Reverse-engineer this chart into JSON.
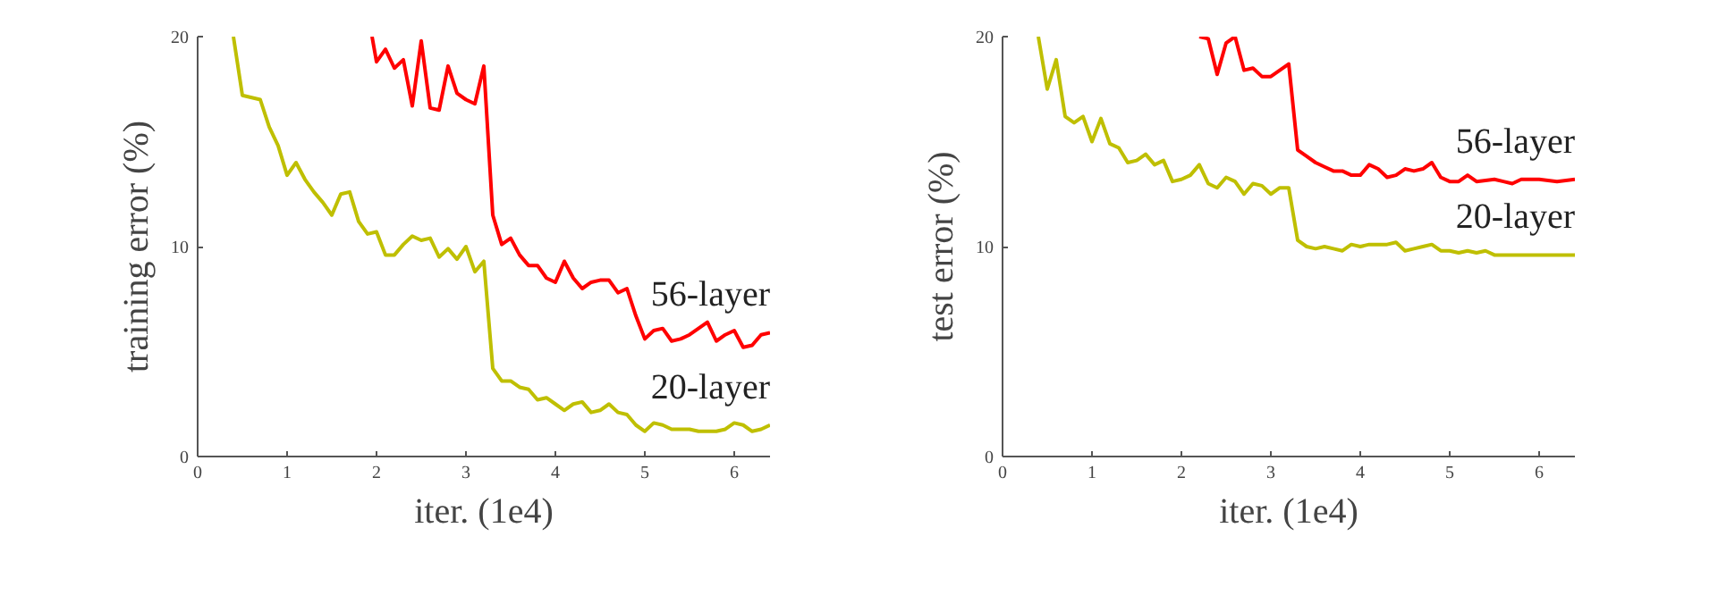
{
  "chart_data": [
    {
      "type": "line",
      "xlabel": "iter. (1e4)",
      "ylabel": "training error (%)",
      "xlim": [
        0,
        6.4
      ],
      "ylim": [
        0,
        20
      ],
      "xticks": [
        0,
        1,
        2,
        3,
        4,
        5,
        6
      ],
      "yticks": [
        0,
        10,
        20
      ],
      "grid": false,
      "line_style": "solid",
      "marker": "none",
      "series": [
        {
          "name": "56-layer",
          "color": "#ff0000",
          "x": [
            1.95,
            2.0,
            2.1,
            2.2,
            2.3,
            2.4,
            2.5,
            2.6,
            2.7,
            2.8,
            2.9,
            3.0,
            3.1,
            3.2,
            3.3,
            3.4,
            3.5,
            3.6,
            3.7,
            3.8,
            3.9,
            4.0,
            4.1,
            4.2,
            4.3,
            4.4,
            4.5,
            4.6,
            4.7,
            4.8,
            4.9,
            5.0,
            5.1,
            5.2,
            5.3,
            5.4,
            5.5,
            5.6,
            5.7,
            5.8,
            5.9,
            6.0,
            6.1,
            6.2,
            6.3,
            6.4
          ],
          "values": [
            20,
            18.8,
            19.4,
            18.5,
            18.9,
            16.7,
            19.8,
            16.6,
            16.5,
            18.6,
            17.3,
            17.0,
            16.8,
            18.6,
            11.5,
            10.1,
            10.4,
            9.6,
            9.1,
            9.1,
            8.5,
            8.3,
            9.3,
            8.5,
            8.0,
            8.3,
            8.4,
            8.4,
            7.8,
            8.0,
            6.7,
            5.6,
            6.0,
            6.1,
            5.5,
            5.6,
            5.8,
            6.1,
            6.4,
            5.5,
            5.8,
            6.0,
            5.2,
            5.3,
            5.8,
            5.9
          ]
        },
        {
          "name": "20-layer",
          "color": "#bfbf00",
          "x": [
            0.4,
            0.5,
            0.7,
            0.8,
            0.9,
            1.0,
            1.1,
            1.2,
            1.3,
            1.4,
            1.5,
            1.6,
            1.7,
            1.8,
            1.9,
            2.0,
            2.1,
            2.2,
            2.3,
            2.4,
            2.5,
            2.6,
            2.7,
            2.8,
            2.9,
            3.0,
            3.1,
            3.2,
            3.3,
            3.4,
            3.5,
            3.6,
            3.7,
            3.8,
            3.9,
            4.0,
            4.1,
            4.2,
            4.3,
            4.4,
            4.5,
            4.6,
            4.7,
            4.8,
            4.9,
            5.0,
            5.1,
            5.2,
            5.3,
            5.5,
            5.6,
            5.8,
            5.9,
            6.0,
            6.1,
            6.2,
            6.3,
            6.4
          ],
          "values": [
            20,
            17.2,
            17.0,
            15.7,
            14.8,
            13.4,
            14.0,
            13.2,
            12.6,
            12.1,
            11.5,
            12.5,
            12.6,
            11.2,
            10.6,
            10.7,
            9.6,
            9.6,
            10.1,
            10.5,
            10.3,
            10.4,
            9.5,
            9.9,
            9.4,
            10.0,
            8.8,
            9.3,
            4.2,
            3.6,
            3.6,
            3.3,
            3.2,
            2.7,
            2.8,
            2.5,
            2.2,
            2.5,
            2.6,
            2.1,
            2.2,
            2.5,
            2.1,
            2.0,
            1.5,
            1.2,
            1.6,
            1.5,
            1.3,
            1.3,
            1.2,
            1.2,
            1.3,
            1.6,
            1.5,
            1.2,
            1.3,
            1.5
          ]
        }
      ]
    },
    {
      "type": "line",
      "xlabel": "iter. (1e4)",
      "ylabel": "test error (%)",
      "xlim": [
        0,
        6.4
      ],
      "ylim": [
        0,
        20
      ],
      "xticks": [
        0,
        1,
        2,
        3,
        4,
        5,
        6
      ],
      "yticks": [
        0,
        10,
        20
      ],
      "grid": false,
      "line_style": "solid",
      "marker": "none",
      "series": [
        {
          "name": "56-layer",
          "color": "#ff0000",
          "x": [
            2.2,
            2.3,
            2.4,
            2.5,
            2.6,
            2.7,
            2.8,
            2.9,
            3.0,
            3.1,
            3.2,
            3.3,
            3.4,
            3.5,
            3.6,
            3.7,
            3.8,
            3.9,
            4.0,
            4.1,
            4.2,
            4.3,
            4.4,
            4.5,
            4.6,
            4.7,
            4.8,
            4.9,
            5.0,
            5.1,
            5.2,
            5.3,
            5.5,
            5.6,
            5.7,
            5.8,
            6.0,
            6.2,
            6.4
          ],
          "values": [
            20,
            19.9,
            18.2,
            19.7,
            20.0,
            18.4,
            18.5,
            18.1,
            18.1,
            18.4,
            18.7,
            14.6,
            14.3,
            14.0,
            13.8,
            13.6,
            13.6,
            13.4,
            13.4,
            13.9,
            13.7,
            13.3,
            13.4,
            13.7,
            13.6,
            13.7,
            14.0,
            13.3,
            13.1,
            13.1,
            13.4,
            13.1,
            13.2,
            13.1,
            13.0,
            13.2,
            13.2,
            13.1,
            13.2
          ]
        },
        {
          "name": "20-layer",
          "color": "#bfbf00",
          "x": [
            0.4,
            0.5,
            0.6,
            0.7,
            0.8,
            0.9,
            1.0,
            1.1,
            1.2,
            1.3,
            1.4,
            1.5,
            1.6,
            1.7,
            1.8,
            1.9,
            2.0,
            2.1,
            2.2,
            2.3,
            2.4,
            2.5,
            2.6,
            2.7,
            2.8,
            2.9,
            3.0,
            3.1,
            3.2,
            3.3,
            3.4,
            3.5,
            3.6,
            3.7,
            3.8,
            3.9,
            4.0,
            4.1,
            4.2,
            4.3,
            4.4,
            4.5,
            4.6,
            4.7,
            4.8,
            4.9,
            5.0,
            5.1,
            5.2,
            5.3,
            5.4,
            5.5,
            5.6,
            5.8,
            6.0,
            6.1,
            6.2,
            6.4
          ],
          "values": [
            20,
            17.5,
            18.9,
            16.2,
            15.9,
            16.2,
            15.0,
            16.1,
            14.9,
            14.7,
            14.0,
            14.1,
            14.4,
            13.9,
            14.1,
            13.1,
            13.2,
            13.4,
            13.9,
            13.0,
            12.8,
            13.3,
            13.1,
            12.5,
            13.0,
            12.9,
            12.5,
            12.8,
            12.8,
            10.3,
            10.0,
            9.9,
            10.0,
            9.9,
            9.8,
            10.1,
            10.0,
            10.1,
            10.1,
            10.1,
            10.2,
            9.8,
            9.9,
            10.0,
            10.1,
            9.8,
            9.8,
            9.7,
            9.8,
            9.7,
            9.8,
            9.6,
            9.6,
            9.6,
            9.6,
            9.6,
            9.6,
            9.6
          ]
        }
      ]
    }
  ]
}
